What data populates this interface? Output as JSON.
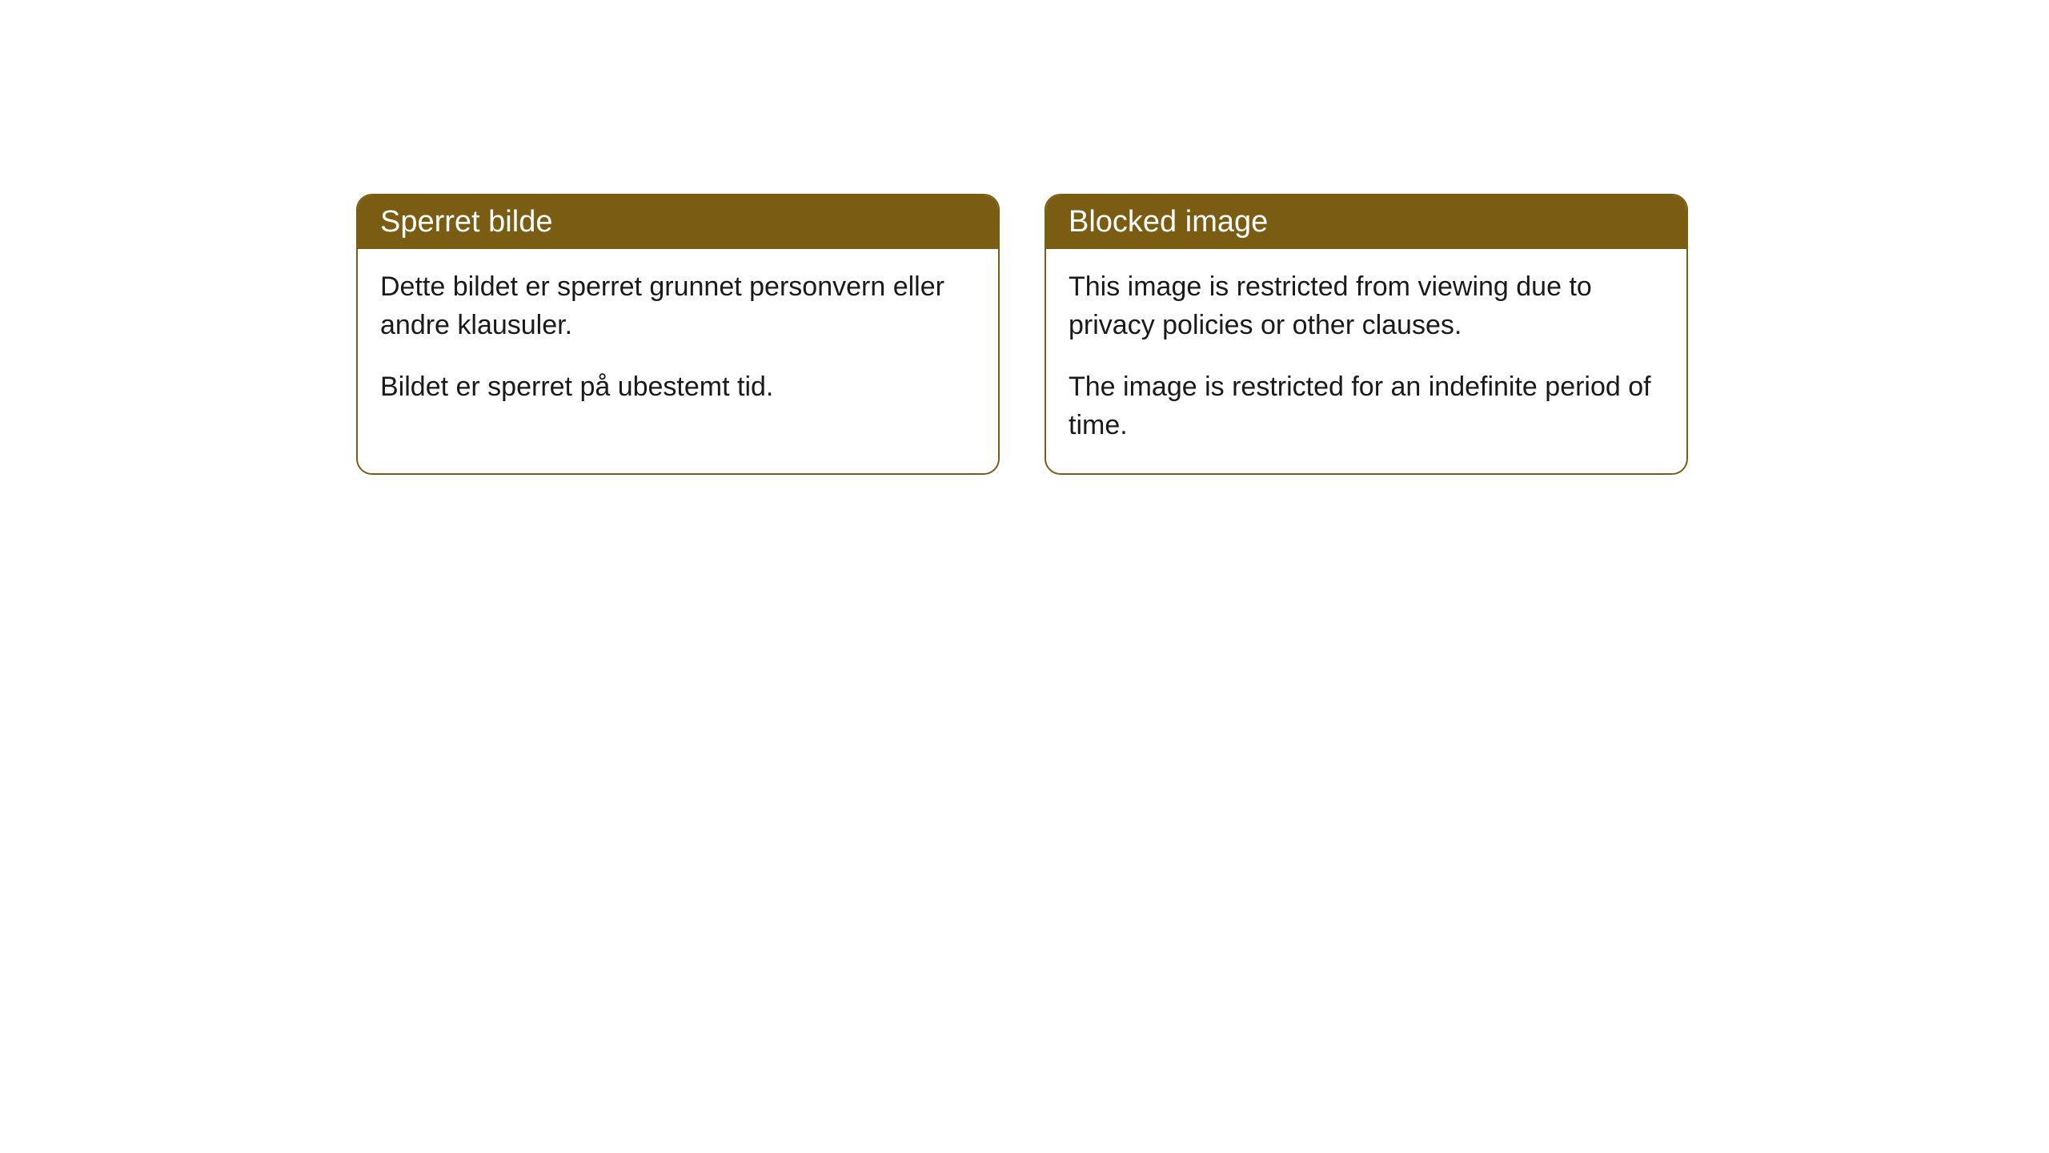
{
  "cards": [
    {
      "title": "Sperret bilde",
      "paragraph1": "Dette bildet er sperret grunnet personvern eller andre klausuler.",
      "paragraph2": "Bildet er sperret på ubestemt tid."
    },
    {
      "title": "Blocked image",
      "paragraph1": "This image is restricted from viewing due to privacy policies or other clauses.",
      "paragraph2": "The image is restricted for an indefinite period of time."
    }
  ],
  "styling": {
    "header_background": "#7a5d13",
    "header_text_color": "#ffffff",
    "border_color": "#7a5d13",
    "body_text_color": "#1a1a1a",
    "card_background": "#ffffff",
    "page_background": "#ffffff",
    "border_radius": 20,
    "header_fontsize": 38,
    "body_fontsize": 34
  }
}
